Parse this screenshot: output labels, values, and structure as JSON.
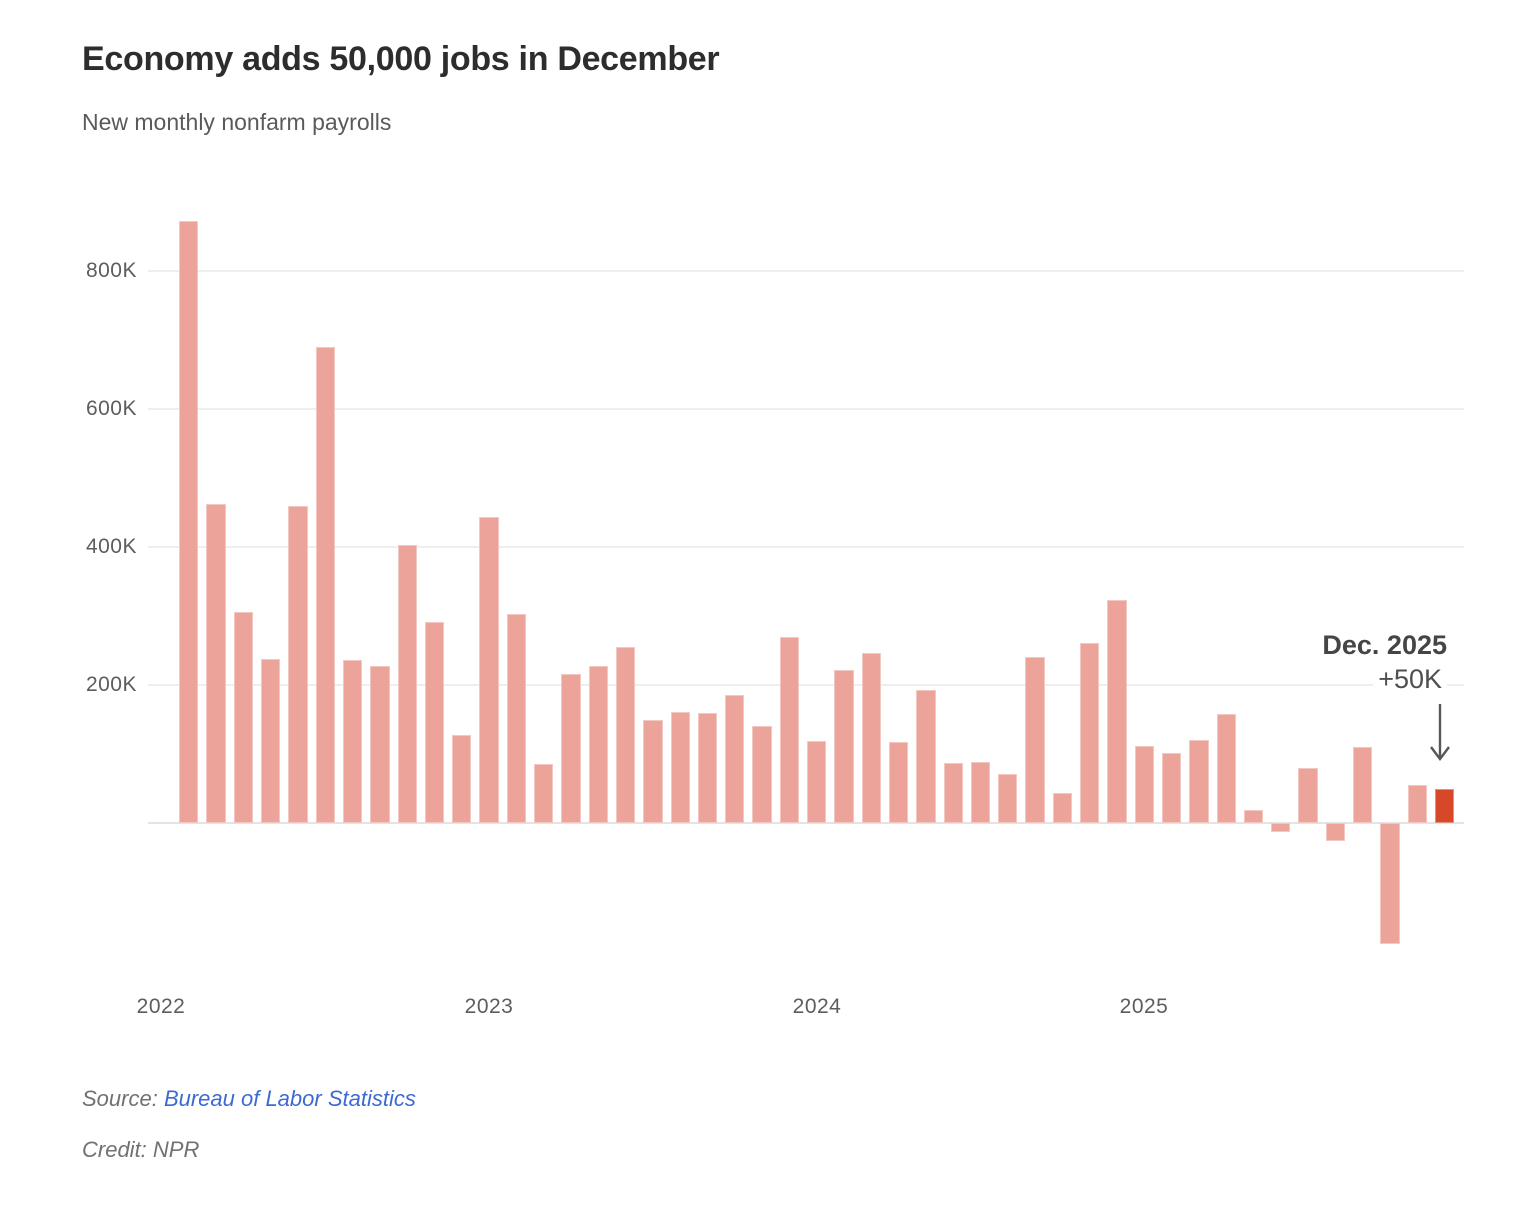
{
  "header": {
    "title": "Economy adds 50,000 jobs in December",
    "subtitle": "New monthly nonfarm payrolls"
  },
  "annotation": {
    "line1": "Dec. 2025",
    "line2": "+50K"
  },
  "y_axis": {
    "ticks": [
      "800K",
      "600K",
      "400K",
      "200K"
    ],
    "tick_values_K": [
      800,
      600,
      400,
      200
    ]
  },
  "x_axis": {
    "ticks": [
      "2022",
      "2023",
      "2024",
      "2025"
    ]
  },
  "footer": {
    "source_prefix": "Source: ",
    "source_link": "Bureau of Labor Statistics",
    "credit": "Credit: NPR"
  },
  "colors": {
    "bar": "#eca399",
    "accent": "#d64828",
    "gridline": "#eeeeee",
    "baseline": "#e4e4e4",
    "axis_text": "#5d5d5d",
    "title_text": "#2d2d2d",
    "annotation_text": "#454545",
    "link": "#3d6ad1",
    "footer_text": "#717171"
  },
  "chart_data": {
    "type": "bar",
    "title": "Economy adds 50,000 jobs in December",
    "subtitle": "New monthly nonfarm payrolls",
    "unit": "thousands of jobs (K)",
    "ylim": [
      -200,
      900
    ],
    "gridlines_K": [
      200,
      400,
      600,
      800
    ],
    "grid": true,
    "legend": "none",
    "x": [
      "Feb 2022",
      "Mar 2022",
      "Apr 2022",
      "May 2022",
      "Jun 2022",
      "Jul 2022",
      "Aug 2022",
      "Sep 2022",
      "Oct 2022",
      "Nov 2022",
      "Dec 2022",
      "Jan 2023",
      "Feb 2023",
      "Mar 2023",
      "Apr 2023",
      "May 2023",
      "Jun 2023",
      "Jul 2023",
      "Aug 2023",
      "Sep 2023",
      "Oct 2023",
      "Nov 2023",
      "Dec 2023",
      "Jan 2024",
      "Feb 2024",
      "Mar 2024",
      "Apr 2024",
      "May 2024",
      "Jun 2024",
      "Jul 2024",
      "Aug 2024",
      "Sep 2024",
      "Oct 2024",
      "Nov 2024",
      "Dec 2024",
      "Jan 2025",
      "Feb 2025",
      "Mar 2025",
      "Apr 2025",
      "May 2025",
      "Jun 2025",
      "Jul 2025",
      "Aug 2025",
      "Sep 2025",
      "Oct 2025",
      "Nov 2025",
      "Dec 2025"
    ],
    "values": [
      872,
      462,
      306,
      238,
      459,
      690,
      236,
      228,
      403,
      291,
      127,
      444,
      303,
      85,
      216,
      227,
      255,
      149,
      161,
      160,
      185,
      140,
      269,
      119,
      222,
      246,
      118,
      193,
      87,
      88,
      71,
      240,
      44,
      261,
      323,
      111,
      102,
      120,
      158,
      19,
      -13,
      79,
      -26,
      110,
      -175,
      55,
      50
    ],
    "highlight_index": 46,
    "highlight_label": "Dec. 2025 +50K",
    "year_tick_positions": {
      "2022": -1,
      "2023": 11,
      "2024": 23,
      "2025": 35
    }
  }
}
